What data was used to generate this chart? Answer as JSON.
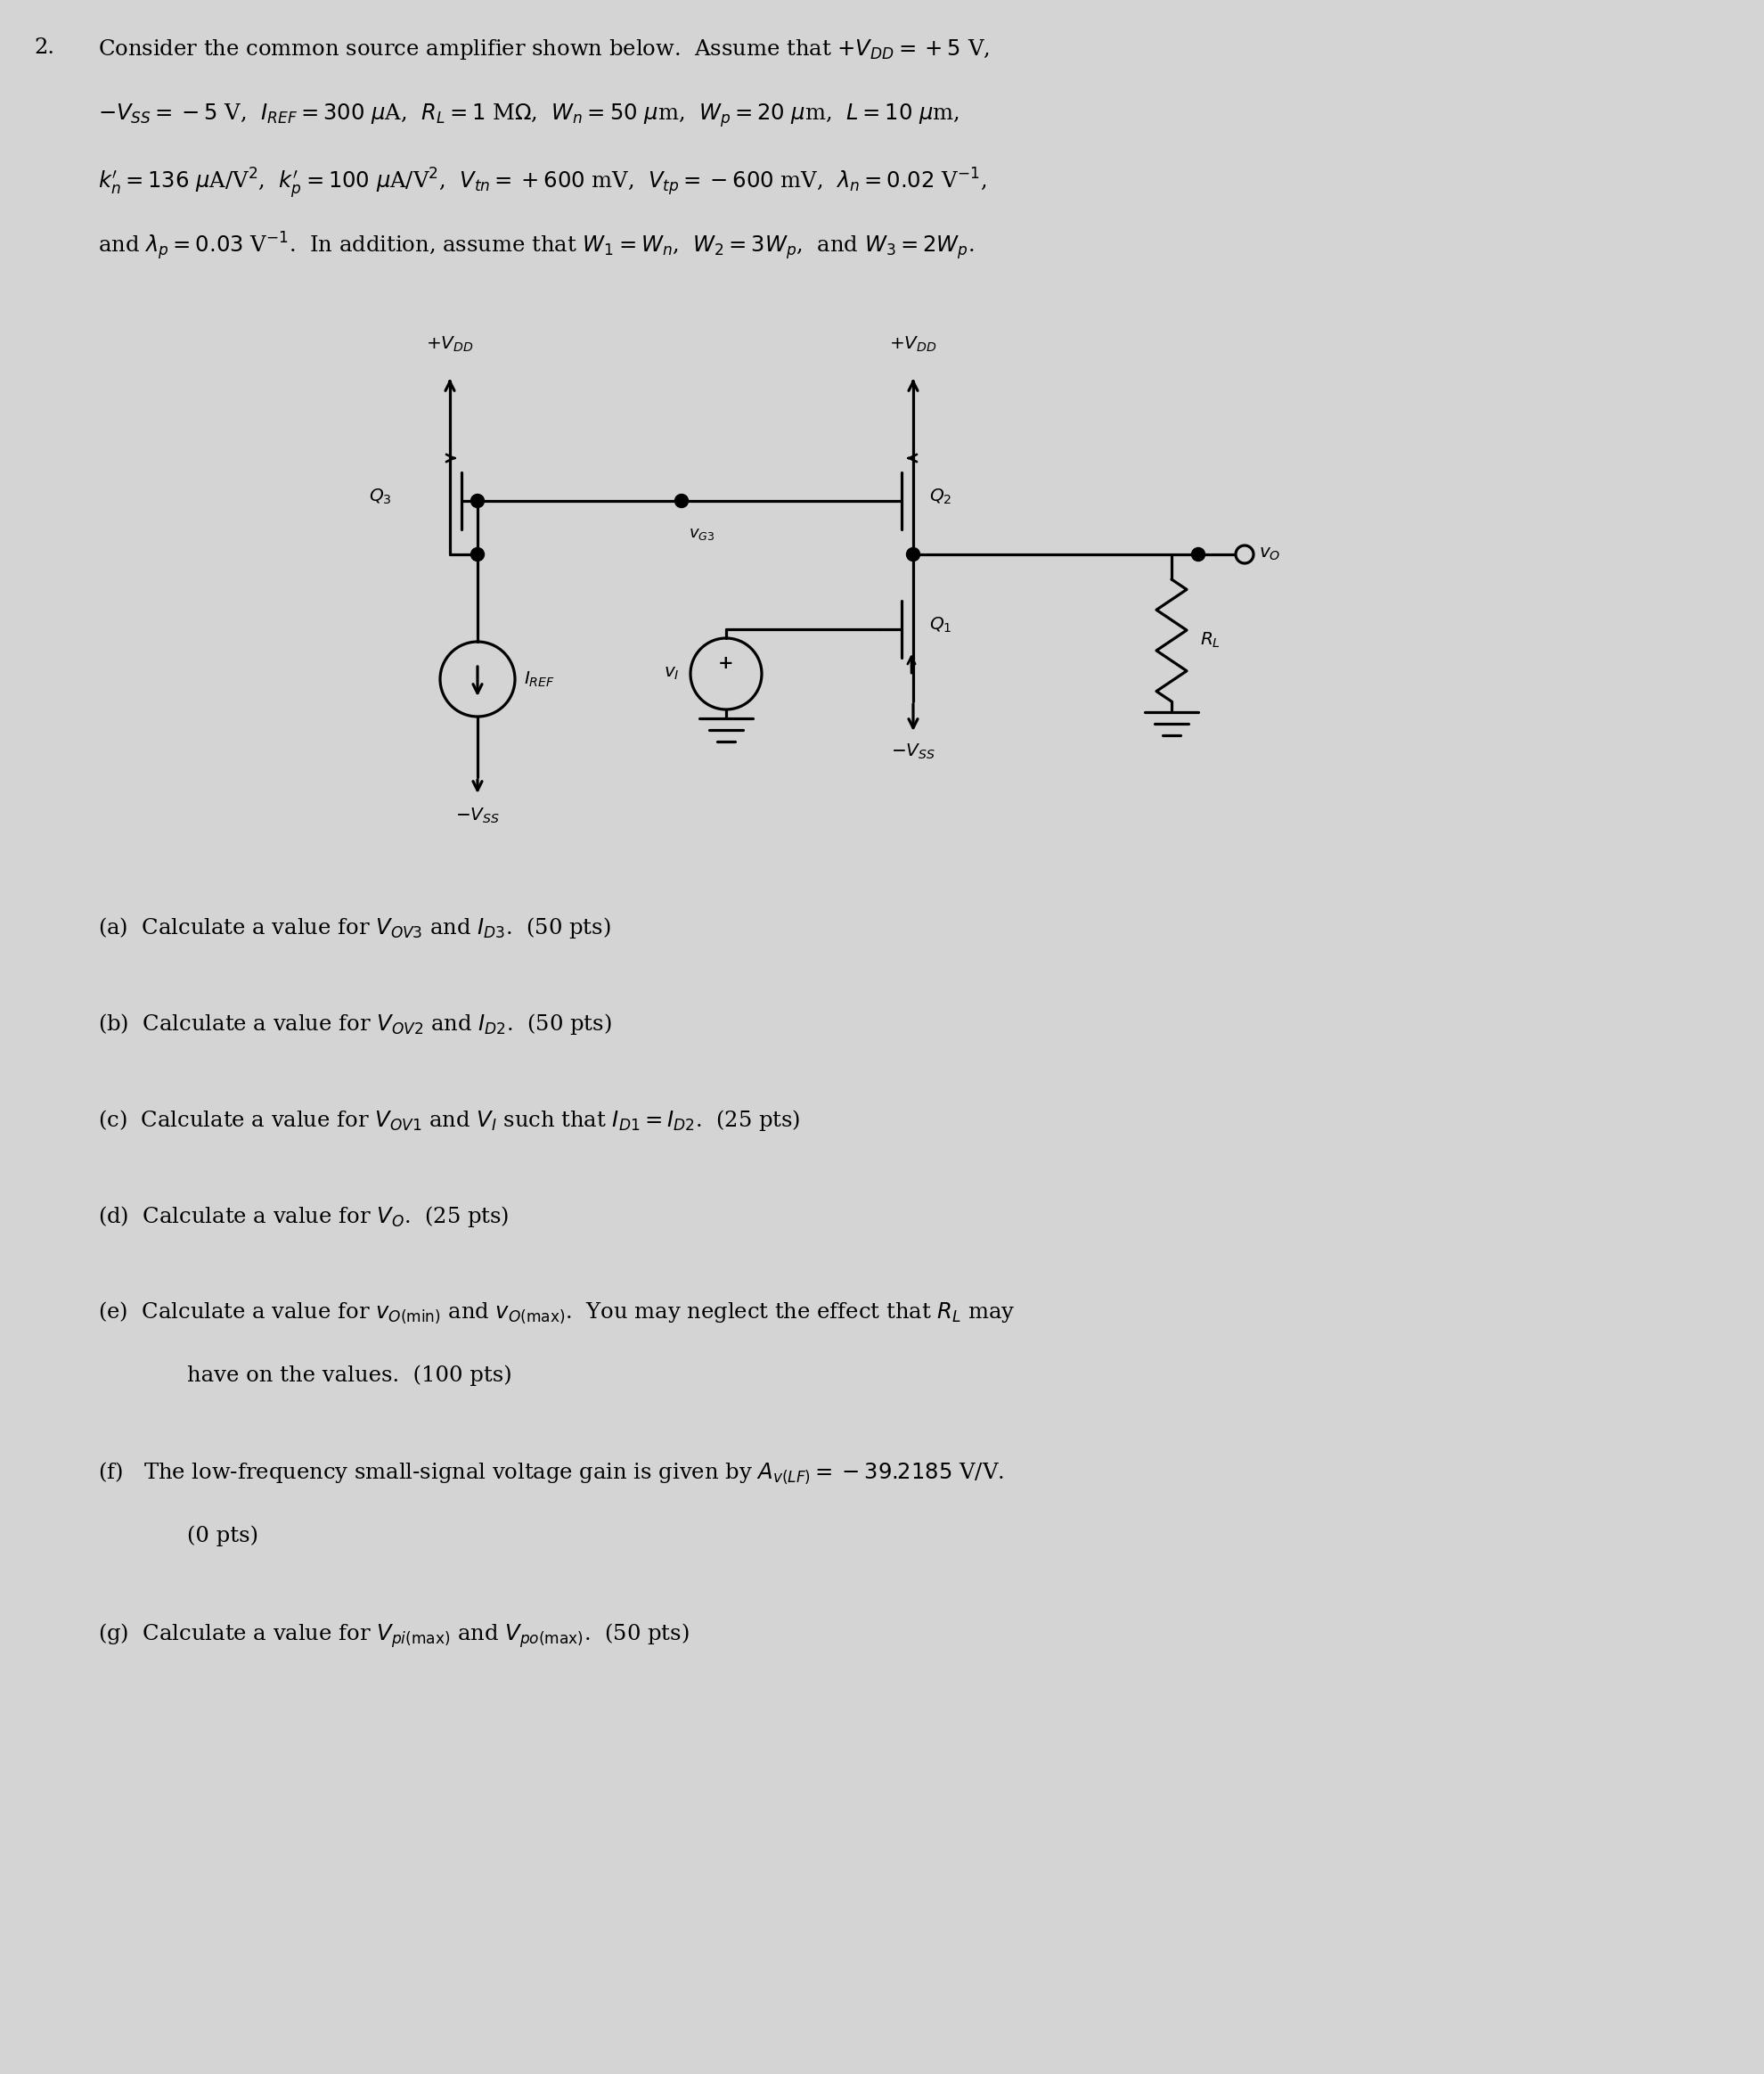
{
  "background_color": "#d4d4d4",
  "fs_header": 17.5,
  "fs_circuit": 14.5,
  "fs_parts": 17.5,
  "lw": 2.3,
  "header": {
    "number": "2.",
    "line1": "Consider the common source amplifier shown below.  Assume that $+V_{DD} = +5$ V,",
    "line2": "$-V_{SS} = -5$ V,  $I_{REF} = 300$ $\\mu$A,  $R_L = 1$ M$\\Omega$,  $W_n = 50$ $\\mu$m,  $W_p = 20$ $\\mu$m,  $L = 10$ $\\mu$m,",
    "line3": "$k_n^{\\prime} = 136$ $\\mu$A/V$^2$,  $k_p^{\\prime} = 100$ $\\mu$A/V$^2$,  $V_{tn} = +600$ mV,  $V_{tp} = -600$ mV,  $\\lambda_n = 0.02$ V$^{-1}$,",
    "line4": "and $\\lambda_p = 0.03$ V$^{-1}$.  In addition, assume that $W_1 = W_n$,  $W_2 = 3W_p$,  and $W_3 = 2W_p$."
  },
  "parts": [
    {
      "text": "(a)  Calculate a value for $V_{OV3}$ and $I_{D3}$.  (50 pts)",
      "cont": null
    },
    {
      "text": "(b)  Calculate a value for $V_{OV2}$ and $I_{D2}$.  (50 pts)",
      "cont": null
    },
    {
      "text": "(c)  Calculate a value for $V_{OV1}$ and $V_I$ such that $I_{D1} = I_{D2}$.  (25 pts)",
      "cont": null
    },
    {
      "text": "(d)  Calculate a value for $V_O$.  (25 pts)",
      "cont": null
    },
    {
      "text": "(e)  Calculate a value for $v_{O(\\mathrm{min})}$ and $v_{O(\\mathrm{max})}$.  You may neglect the effect that $R_L$ may",
      "cont": "have on the values.  (100 pts)"
    },
    {
      "text": "(f)   The low-frequency small-signal voltage gain is given by $A_{v(LF)} = -39.2185$ V/V.",
      "cont": "(0 pts)"
    },
    {
      "text": "(g)  Calculate a value for $V_{pi(\\mathrm{max})}$ and $V_{po(\\mathrm{max})}$.  (50 pts)",
      "cont": null
    }
  ]
}
